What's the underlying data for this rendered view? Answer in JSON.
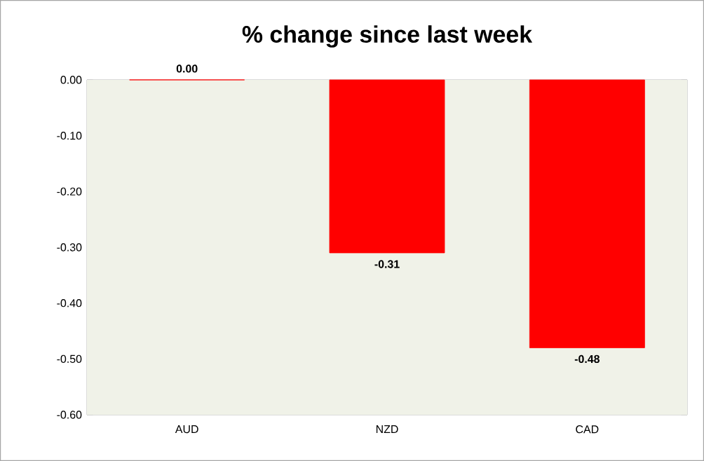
{
  "chart_data": {
    "type": "bar",
    "title": "% change since last week",
    "categories": [
      "AUD",
      "NZD",
      "CAD"
    ],
    "values": [
      0.0,
      -0.31,
      -0.48
    ],
    "color": "#ff0000",
    "value_labels": [
      "0.00",
      "-0.31",
      "-0.48"
    ],
    "ylim": [
      -0.6,
      0.0
    ],
    "yticks": [
      {
        "value": -0.6,
        "label": "-0.60"
      },
      {
        "value": -0.5,
        "label": "-0.50"
      },
      {
        "value": -0.4,
        "label": "-0.40"
      },
      {
        "value": -0.3,
        "label": "-0.30"
      },
      {
        "value": -0.2,
        "label": "-0.20"
      },
      {
        "value": -0.1,
        "label": "-0.10"
      },
      {
        "value": 0.0,
        "label": "0.00"
      }
    ],
    "grid": false
  }
}
